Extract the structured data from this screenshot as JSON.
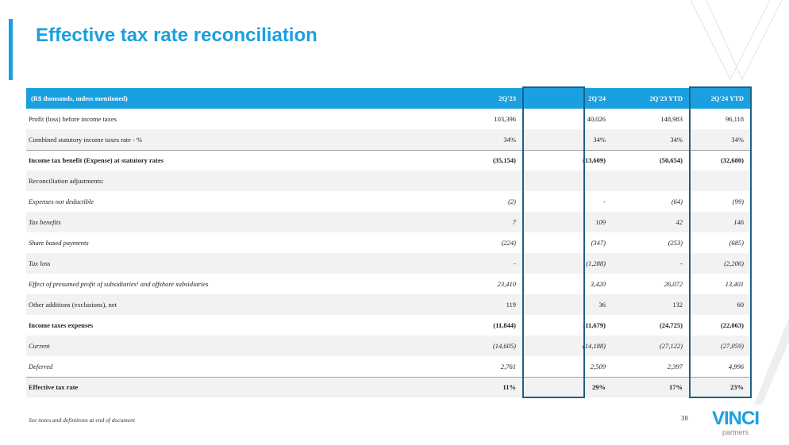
{
  "title": "Effective tax rate reconciliation",
  "table": {
    "headers": [
      "(R$ thousands, unless mentioned)",
      "2Q'23",
      "2Q'24",
      "2Q'23 YTD",
      "2Q'24 YTD"
    ],
    "rows": [
      {
        "label": "Profit (loss) before income taxes",
        "values": [
          "103,396",
          "40,026",
          "148,983",
          "96,118"
        ],
        "style": "normal"
      },
      {
        "label": "Combined statutory income taxes rate - %",
        "values": [
          "34%",
          "34%",
          "34%",
          "34%"
        ],
        "style": "normal"
      },
      {
        "label": "Income tax benefit (Expense) at statutory rates",
        "values": [
          "(35,154)",
          "(13,609)",
          "(50,654)",
          "(32,680)"
        ],
        "style": "bold"
      },
      {
        "label": "Reconciliation adjustments:",
        "values": [
          "",
          "",
          "",
          ""
        ],
        "style": "normal"
      },
      {
        "label": "Expenses not deductible",
        "values": [
          "(2)",
          "-",
          "(64)",
          "(99)"
        ],
        "style": "italic"
      },
      {
        "label": "Tax benefits",
        "values": [
          "7",
          "109",
          "42",
          "146"
        ],
        "style": "italic"
      },
      {
        "label": "Share based payments",
        "values": [
          "(224)",
          "(347)",
          "(253)",
          "(685)"
        ],
        "style": "italic"
      },
      {
        "label": "Tax loss",
        "values": [
          "-",
          "(1,288)",
          "-",
          "(2,206)"
        ],
        "style": "italic"
      },
      {
        "label": "Effect of presumed profit of subsidiaries¹ and offshore subsidiaries",
        "values": [
          "23,410",
          "3,420",
          "26,072",
          "13,401"
        ],
        "style": "italic"
      },
      {
        "label": "Other additions (exclusions), net",
        "values": [
          "119",
          "36",
          "132",
          "60"
        ],
        "style": "normal"
      },
      {
        "label": "Income taxes expenses",
        "values": [
          "(11,844)",
          "(11,679)",
          "(24,725)",
          "(22,063)"
        ],
        "style": "bold"
      },
      {
        "label": "Current",
        "values": [
          "(14,605)",
          "(14,188)",
          "(27,122)",
          "(27,059)"
        ],
        "style": "italic"
      },
      {
        "label": "Deferred",
        "values": [
          "2,761",
          "2,509",
          "2,397",
          "4,996"
        ],
        "style": "italic"
      },
      {
        "label": "Effective tax rate",
        "values": [
          "11%",
          "29%",
          "17%",
          "23%"
        ],
        "style": "bold"
      }
    ]
  },
  "footnote": "See notes and definitions at end of document",
  "page_number": "38",
  "logo": {
    "word": "VINCI",
    "sub": "partners"
  },
  "colors": {
    "accent": "#1aa0e0",
    "highlight_border": "#1f5f86"
  }
}
